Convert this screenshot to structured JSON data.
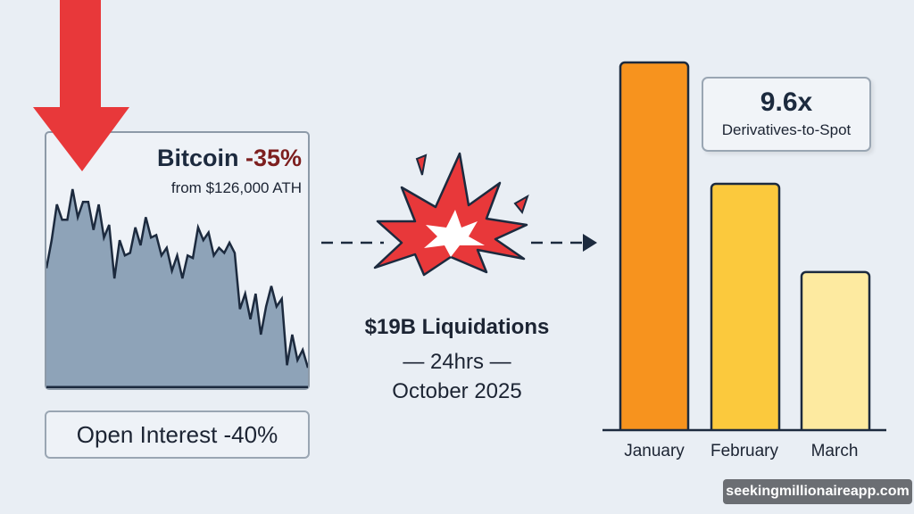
{
  "bitcoin_panel": {
    "title": "Bitcoin",
    "change": "-35%",
    "subtitle": "from $126,000 ATH",
    "open_interest": "Open Interest -40%"
  },
  "event": {
    "headline": "$19B Liquidations",
    "duration": "— 24hrs —",
    "date": "October 2025"
  },
  "callout": {
    "value": "9.6x",
    "label": "Derivatives-to-Spot"
  },
  "chart_data": [
    {
      "type": "area",
      "title": "",
      "xlabel": "",
      "ylabel": "",
      "grid": false,
      "values_relative": [
        47,
        58,
        72,
        66,
        66,
        78,
        67,
        73,
        73,
        62,
        72,
        59,
        64,
        43,
        58,
        52,
        53,
        63,
        56,
        67,
        59,
        60,
        52,
        55,
        46,
        52,
        43,
        52,
        51,
        63,
        58,
        61,
        52,
        55,
        53,
        57,
        53,
        31,
        37,
        27,
        37,
        21,
        32,
        40,
        32,
        35,
        9,
        21,
        11,
        15,
        8
      ],
      "color": "#8ea3b8"
    },
    {
      "type": "bar",
      "categories": [
        "January",
        "February",
        "March"
      ],
      "values_relative": [
        100,
        67,
        43
      ],
      "colors": [
        "#f7931e",
        "#fbc93d",
        "#fdeaa0"
      ],
      "grid": false
    }
  ],
  "colors": {
    "arrow": "#e8383a",
    "explosion": "#e8383a",
    "ink": "#1c2a3e"
  },
  "watermark": "seekingmillionaireapp.com"
}
